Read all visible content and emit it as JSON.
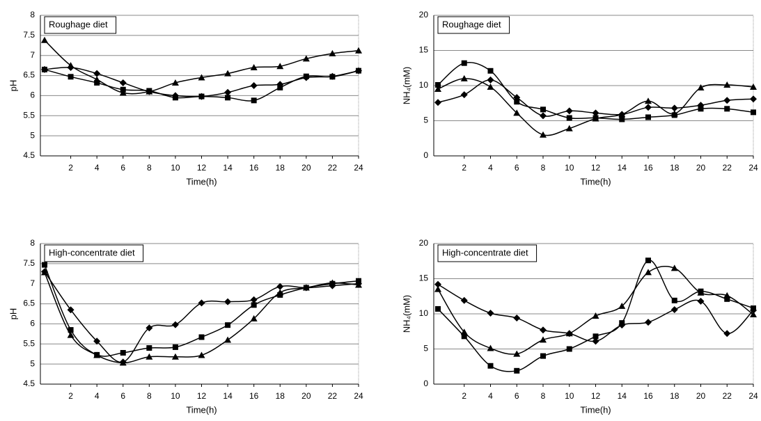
{
  "chart_data": [
    {
      "type": "line",
      "annotation": "Roughage diet",
      "xlabel": "Time(h)",
      "ylabel": "pH",
      "x": [
        0,
        2,
        4,
        6,
        8,
        10,
        12,
        14,
        16,
        18,
        20,
        22,
        24
      ],
      "xlim": [
        0,
        24
      ],
      "xticks": [
        2,
        4,
        6,
        8,
        10,
        12,
        14,
        16,
        18,
        20,
        22,
        24
      ],
      "ylim": [
        4.5,
        8
      ],
      "yticks": [
        4.5,
        5,
        5.5,
        6,
        6.5,
        7,
        7.5,
        8
      ],
      "grid": true,
      "series": [
        {
          "marker": "diamond",
          "color": "#000000",
          "values": [
            6.65,
            6.7,
            6.55,
            6.32,
            6.1,
            6.0,
            5.98,
            6.08,
            6.25,
            6.28,
            6.45,
            6.48,
            6.62
          ]
        },
        {
          "marker": "square",
          "color": "#000000",
          "values": [
            6.65,
            6.47,
            6.32,
            6.15,
            6.12,
            5.95,
            5.98,
            5.95,
            5.88,
            6.2,
            6.48,
            6.47,
            6.62
          ]
        },
        {
          "marker": "triangle",
          "color": "#000000",
          "values": [
            7.38,
            6.75,
            6.4,
            6.07,
            6.1,
            6.32,
            6.45,
            6.55,
            6.7,
            6.73,
            6.92,
            7.05,
            7.12
          ]
        }
      ]
    },
    {
      "type": "line",
      "annotation": "Roughage diet",
      "xlabel": "Time(h)",
      "ylabel": "NH₄(mM)",
      "x": [
        0,
        2,
        4,
        6,
        8,
        10,
        12,
        14,
        16,
        18,
        20,
        22,
        24
      ],
      "xlim": [
        0,
        24
      ],
      "xticks": [
        2,
        4,
        6,
        8,
        10,
        12,
        14,
        16,
        18,
        20,
        22,
        24
      ],
      "ylim": [
        0,
        20
      ],
      "yticks": [
        0,
        5,
        10,
        15,
        20
      ],
      "grid": true,
      "series": [
        {
          "marker": "diamond",
          "color": "#000000",
          "values": [
            7.6,
            8.7,
            10.8,
            8.3,
            5.7,
            6.4,
            6.1,
            5.9,
            6.9,
            6.8,
            7.2,
            7.9,
            8.1
          ]
        },
        {
          "marker": "square",
          "color": "#000000",
          "values": [
            10.1,
            13.2,
            12.1,
            7.7,
            6.6,
            5.4,
            5.4,
            5.2,
            5.5,
            5.8,
            6.7,
            6.7,
            6.2
          ]
        },
        {
          "marker": "triangle",
          "color": "#000000",
          "values": [
            9.5,
            11.0,
            9.8,
            6.1,
            3.0,
            3.9,
            5.3,
            5.9,
            7.8,
            6.0,
            9.7,
            10.1,
            9.8
          ]
        }
      ]
    },
    {
      "type": "line",
      "annotation": "High-concentrate diet",
      "xlabel": "Time(h)",
      "ylabel": "pH",
      "x": [
        0,
        2,
        4,
        6,
        8,
        10,
        12,
        14,
        16,
        18,
        20,
        22,
        24
      ],
      "xlim": [
        0,
        24
      ],
      "xticks": [
        2,
        4,
        6,
        8,
        10,
        12,
        14,
        16,
        18,
        20,
        22,
        24
      ],
      "ylim": [
        4.5,
        8
      ],
      "yticks": [
        4.5,
        5,
        5.5,
        6,
        6.5,
        7,
        7.5,
        8
      ],
      "grid": true,
      "series": [
        {
          "marker": "diamond",
          "color": "#000000",
          "values": [
            7.3,
            6.35,
            5.57,
            5.05,
            5.9,
            5.98,
            6.52,
            6.55,
            6.6,
            6.93,
            6.9,
            6.95,
            7.0
          ]
        },
        {
          "marker": "square",
          "color": "#000000",
          "values": [
            7.47,
            5.85,
            5.23,
            5.28,
            5.4,
            5.42,
            5.67,
            5.97,
            6.47,
            6.72,
            6.9,
            7.0,
            7.07
          ]
        },
        {
          "marker": "triangle",
          "color": "#000000",
          "values": [
            7.28,
            5.72,
            5.22,
            5.03,
            5.18,
            5.18,
            5.22,
            5.6,
            6.13,
            6.78,
            6.9,
            7.02,
            6.97
          ]
        }
      ]
    },
    {
      "type": "line",
      "annotation": "High-concentrate diet",
      "xlabel": "Time(h)",
      "ylabel": "NH₄(mM)",
      "x": [
        0,
        2,
        4,
        6,
        8,
        10,
        12,
        14,
        16,
        18,
        20,
        22,
        24
      ],
      "xlim": [
        0,
        24
      ],
      "xticks": [
        2,
        4,
        6,
        8,
        10,
        12,
        14,
        16,
        18,
        20,
        22,
        24
      ],
      "ylim": [
        0,
        20
      ],
      "yticks": [
        0,
        5,
        10,
        15,
        20
      ],
      "grid": true,
      "series": [
        {
          "marker": "diamond",
          "color": "#000000",
          "values": [
            14.2,
            11.9,
            10.1,
            9.4,
            7.7,
            7.2,
            6.1,
            8.4,
            8.8,
            10.6,
            11.8,
            7.2,
            10.5
          ]
        },
        {
          "marker": "square",
          "color": "#000000",
          "values": [
            10.7,
            6.8,
            2.6,
            1.9,
            4.0,
            5.0,
            6.8,
            8.7,
            17.6,
            11.9,
            13.2,
            12.1,
            10.8
          ]
        },
        {
          "marker": "triangle",
          "color": "#000000",
          "values": [
            13.5,
            7.4,
            5.1,
            4.3,
            6.3,
            7.2,
            9.7,
            11.1,
            15.9,
            16.5,
            13.0,
            12.6,
            9.9
          ]
        }
      ]
    }
  ]
}
